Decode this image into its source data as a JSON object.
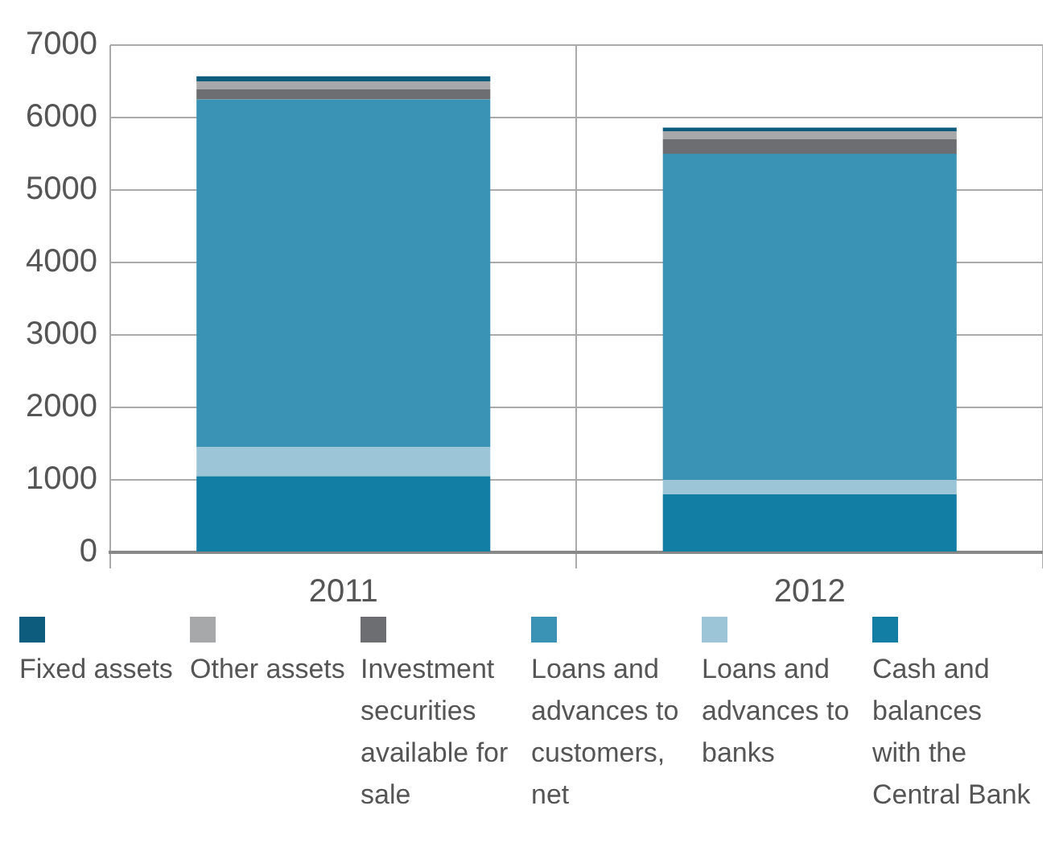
{
  "chart_data": {
    "type": "bar",
    "stacked": true,
    "categories": [
      "2011",
      "2012"
    ],
    "series": [
      {
        "name": "Cash and balances with the Central Bank",
        "color": "#127ea3",
        "values": [
          1050,
          800
        ]
      },
      {
        "name": "Loans and advances to banks",
        "color": "#9dc5d8",
        "values": [
          400,
          200
        ]
      },
      {
        "name": "Loans and advances to customers, net",
        "color": "#3a93b5",
        "values": [
          4800,
          4500
        ]
      },
      {
        "name": "Investment securities available for sale",
        "color": "#6d6e71",
        "values": [
          140,
          200
        ]
      },
      {
        "name": "Other assets",
        "color": "#a7a8aa",
        "values": [
          110,
          110
        ]
      },
      {
        "name": "Fixed assets",
        "color": "#0d5c7e",
        "values": [
          70,
          50
        ]
      }
    ],
    "ylim": [
      0,
      7000
    ],
    "yticks": [
      0,
      1000,
      2000,
      3000,
      4000,
      5000,
      6000,
      7000
    ],
    "grid": true,
    "legend": "bottom"
  }
}
